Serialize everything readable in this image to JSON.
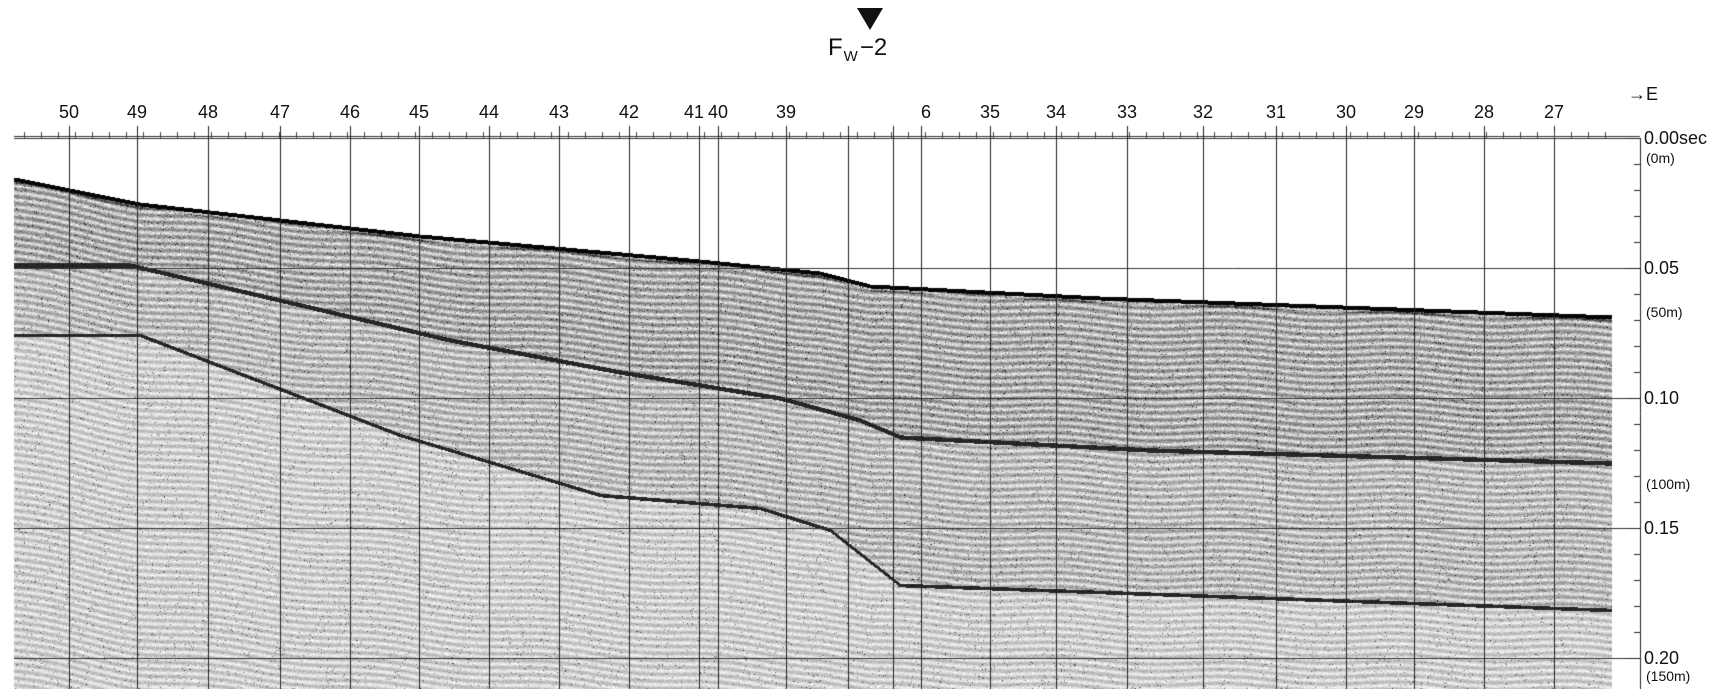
{
  "fault": {
    "name_main": "F",
    "name_sub": "W",
    "name_suffix": "−2"
  },
  "direction": "→E",
  "shot_labels": [
    "50",
    "49",
    "48",
    "47",
    "46",
    "45",
    "44",
    "43",
    "42",
    "41",
    "40",
    "39",
    "6",
    "35",
    "34",
    "33",
    "32",
    "31",
    "30",
    "29",
    "28",
    "27"
  ],
  "time_axis": [
    {
      "value": "0.00sec",
      "depth": "(0m)"
    },
    {
      "value": "0.05",
      "depth": "(50m)"
    },
    {
      "value": "0.10",
      "depth": "(100m)"
    },
    {
      "value": "0.15",
      "depth": ""
    },
    {
      "value": "0.20",
      "depth": "(150m)"
    }
  ],
  "colors": {
    "ink": "#111111",
    "background": "#ffffff",
    "grid": "#333333"
  }
}
